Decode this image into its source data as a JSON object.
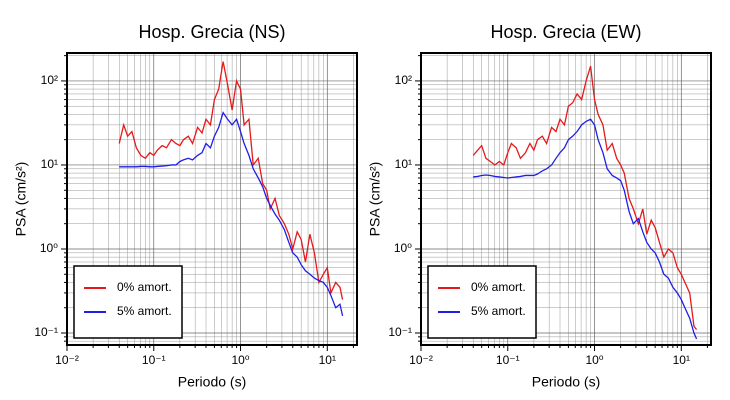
{
  "chart_data": [
    {
      "type": "line",
      "title": "Hosp. Grecia (NS)",
      "xlabel": "Periodo (s)",
      "ylabel": "PSA (cm/s²)",
      "log_x": true,
      "log_y": true,
      "grid": true,
      "minor_grid": true,
      "legend": "lower left",
      "xlim": [
        0.01,
        22
      ],
      "ylim": [
        0.072,
        215
      ],
      "xticks": [
        {
          "value": 0.01,
          "label": "10⁻²"
        },
        {
          "value": 0.1,
          "label": "10⁻¹"
        },
        {
          "value": 1,
          "label": "10⁰"
        },
        {
          "value": 10,
          "label": "10¹"
        }
      ],
      "yticks": [
        {
          "value": 0.1,
          "label": "10⁻¹"
        },
        {
          "value": 1,
          "label": "10⁰"
        },
        {
          "value": 10,
          "label": "10¹"
        },
        {
          "value": 100,
          "label": "10²"
        }
      ],
      "x": [
        0.04,
        0.045,
        0.05,
        0.056,
        0.063,
        0.071,
        0.08,
        0.09,
        0.1,
        0.11,
        0.125,
        0.14,
        0.16,
        0.18,
        0.2,
        0.22,
        0.25,
        0.28,
        0.32,
        0.36,
        0.4,
        0.45,
        0.5,
        0.56,
        0.63,
        0.71,
        0.8,
        0.9,
        1.0,
        1.1,
        1.25,
        1.4,
        1.6,
        1.8,
        2.0,
        2.2,
        2.5,
        2.8,
        3.2,
        3.6,
        4.0,
        4.5,
        5,
        5.6,
        6.3,
        7.1,
        8,
        9,
        10,
        11,
        12.5,
        14,
        15
      ],
      "series": [
        {
          "name": "0% amort.",
          "color": "#e41a1c",
          "values": [
            18,
            30,
            22,
            25,
            16,
            13,
            12,
            14,
            13,
            15,
            17,
            16,
            20,
            18,
            17,
            20,
            22,
            18,
            28,
            24,
            35,
            30,
            60,
            80,
            170,
            90,
            45,
            100,
            80,
            30,
            35,
            10,
            12,
            6,
            5,
            3,
            4,
            2.5,
            2,
            1.5,
            1,
            1.6,
            1.3,
            0.7,
            1.5,
            0.9,
            0.4,
            0.5,
            0.6,
            0.3,
            0.4,
            0.35,
            0.25
          ]
        },
        {
          "name": "5% amort.",
          "color": "#1f1fe6",
          "values": [
            9.5,
            9.5,
            9.5,
            9.5,
            9.5,
            9.6,
            9.6,
            9.5,
            9.5,
            9.6,
            9.7,
            9.8,
            10,
            10,
            11,
            11.5,
            12,
            11.5,
            13,
            14,
            18,
            16,
            22,
            28,
            42,
            35,
            30,
            35,
            25,
            18,
            13,
            9,
            7,
            5.5,
            4,
            3.3,
            2.6,
            2.2,
            1.7,
            1.2,
            0.9,
            0.8,
            0.65,
            0.55,
            0.5,
            0.45,
            0.42,
            0.4,
            0.35,
            0.28,
            0.2,
            0.22,
            0.16
          ]
        }
      ]
    },
    {
      "type": "line",
      "title": "Hosp. Grecia (EW)",
      "xlabel": "Periodo (s)",
      "ylabel": "PSA (cm/s²)",
      "log_x": true,
      "log_y": true,
      "grid": true,
      "minor_grid": true,
      "legend": "lower left",
      "xlim": [
        0.01,
        22
      ],
      "ylim": [
        0.072,
        215
      ],
      "xticks": [
        {
          "value": 0.01,
          "label": "10⁻²"
        },
        {
          "value": 0.1,
          "label": "10⁻¹"
        },
        {
          "value": 1,
          "label": "10⁰"
        },
        {
          "value": 10,
          "label": "10¹"
        }
      ],
      "yticks": [
        {
          "value": 0.1,
          "label": "10⁻¹"
        },
        {
          "value": 1,
          "label": "10⁰"
        },
        {
          "value": 10,
          "label": "10¹"
        },
        {
          "value": 100,
          "label": "10²"
        }
      ],
      "x": [
        0.04,
        0.045,
        0.05,
        0.056,
        0.063,
        0.071,
        0.08,
        0.09,
        0.1,
        0.11,
        0.125,
        0.14,
        0.16,
        0.18,
        0.2,
        0.22,
        0.25,
        0.28,
        0.32,
        0.36,
        0.4,
        0.45,
        0.5,
        0.56,
        0.63,
        0.71,
        0.8,
        0.9,
        1.0,
        1.1,
        1.25,
        1.4,
        1.6,
        1.8,
        2.0,
        2.2,
        2.5,
        2.8,
        3.2,
        3.6,
        4.0,
        4.5,
        5,
        5.6,
        6.3,
        7.1,
        8,
        9,
        10,
        11,
        12.5,
        14,
        15
      ],
      "series": [
        {
          "name": "0% amort.",
          "color": "#e41a1c",
          "values": [
            13,
            15,
            17,
            12,
            11,
            10,
            11,
            10,
            14,
            18,
            16,
            12,
            14,
            18,
            15,
            20,
            22,
            18,
            28,
            25,
            35,
            30,
            50,
            55,
            70,
            60,
            100,
            150,
            60,
            40,
            30,
            15,
            18,
            12,
            10,
            8,
            4,
            3,
            2,
            3,
            1.5,
            2.2,
            1.8,
            1.2,
            0.8,
            1,
            0.9,
            0.6,
            0.5,
            0.4,
            0.3,
            0.12,
            0.11
          ]
        },
        {
          "name": "5% amort.",
          "color": "#1f1fe6",
          "values": [
            7.2,
            7.3,
            7.5,
            7.6,
            7.5,
            7.3,
            7.2,
            7.1,
            7,
            7.1,
            7.2,
            7.3,
            7.5,
            7.5,
            7.5,
            7.8,
            8.5,
            9,
            10,
            12,
            14,
            16,
            20,
            22,
            25,
            30,
            33,
            35,
            30,
            20,
            14,
            9,
            7.5,
            7,
            6.5,
            5,
            2.8,
            2,
            2.3,
            1.6,
            1.2,
            1,
            0.9,
            0.7,
            0.5,
            0.45,
            0.35,
            0.3,
            0.25,
            0.2,
            0.15,
            0.1,
            0.085
          ]
        }
      ]
    }
  ]
}
